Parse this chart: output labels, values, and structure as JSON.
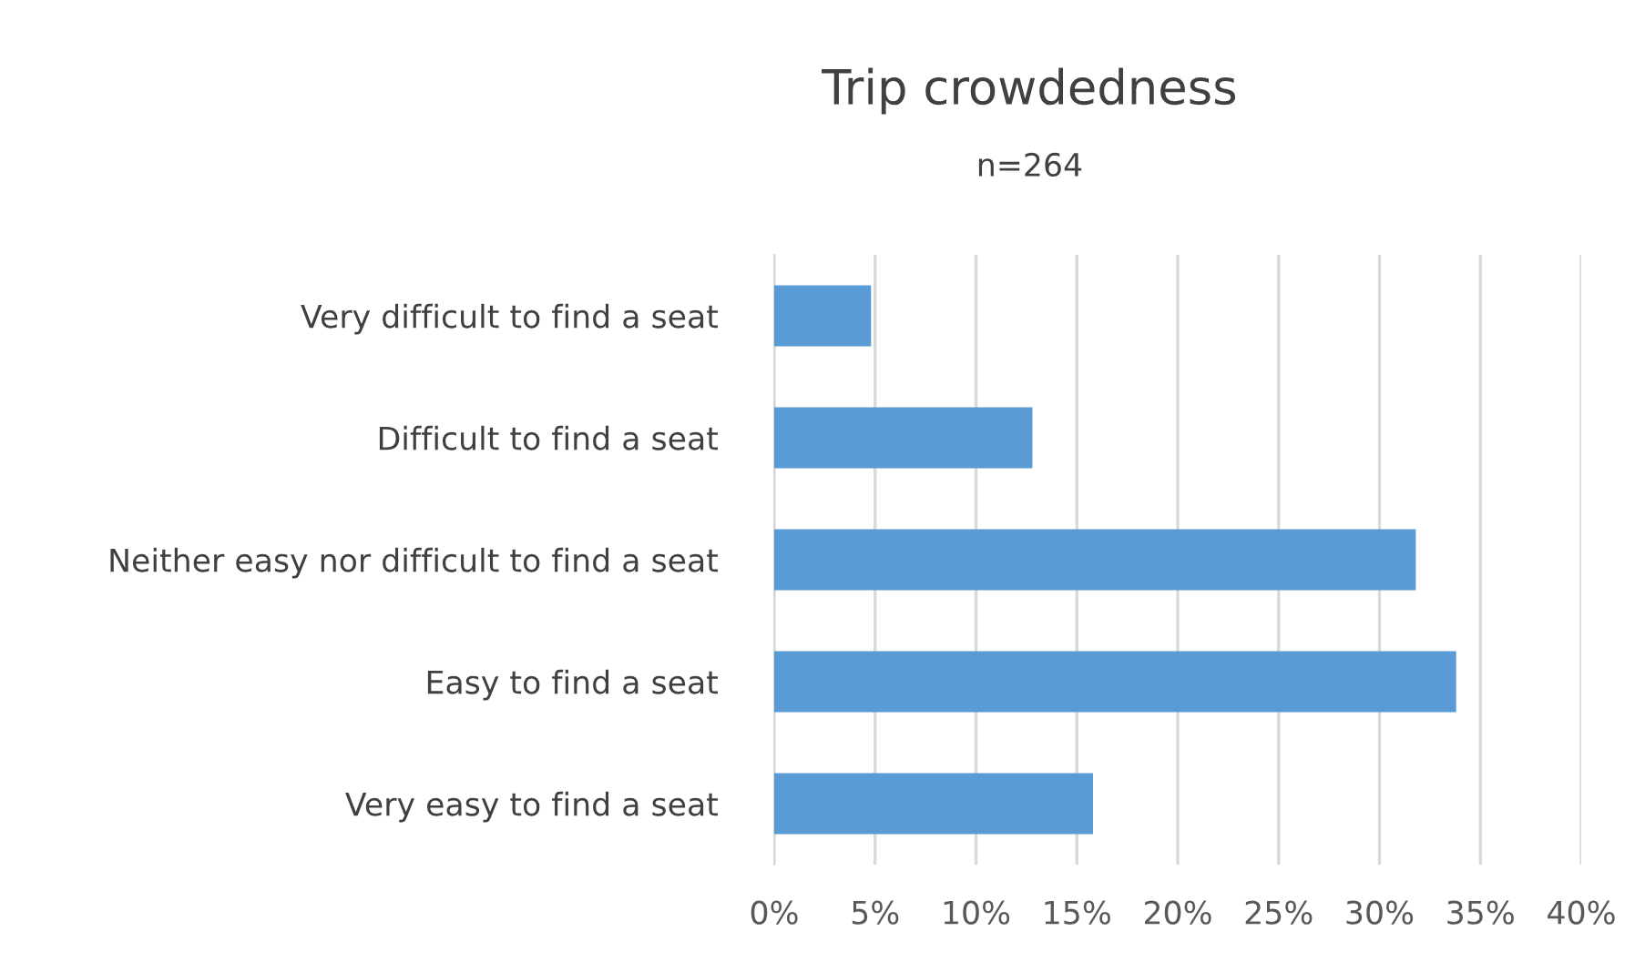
{
  "chart_data": {
    "type": "bar",
    "orientation": "horizontal",
    "title": "Trip crowdedness",
    "subtitle": "n=264",
    "categories": [
      "Very difficult to find a seat",
      "Difficult to find a seat",
      "Neither easy nor difficult to find a seat",
      "Easy to find a seat",
      "Very easy to find a seat"
    ],
    "values": [
      4.8,
      12.8,
      31.8,
      33.8,
      15.8
    ],
    "color": "#5b9bd5",
    "xlim": [
      0,
      40
    ],
    "xticks": [
      {
        "value": 0,
        "label": "0%"
      },
      {
        "value": 5,
        "label": "5%"
      },
      {
        "value": 10,
        "label": "10%"
      },
      {
        "value": 15,
        "label": "15%"
      },
      {
        "value": 20,
        "label": "20%"
      },
      {
        "value": 25,
        "label": "25%"
      },
      {
        "value": 30,
        "label": "30%"
      },
      {
        "value": 35,
        "label": "35%"
      },
      {
        "value": 40,
        "label": "40%"
      }
    ],
    "grid": "x",
    "legend": false
  }
}
